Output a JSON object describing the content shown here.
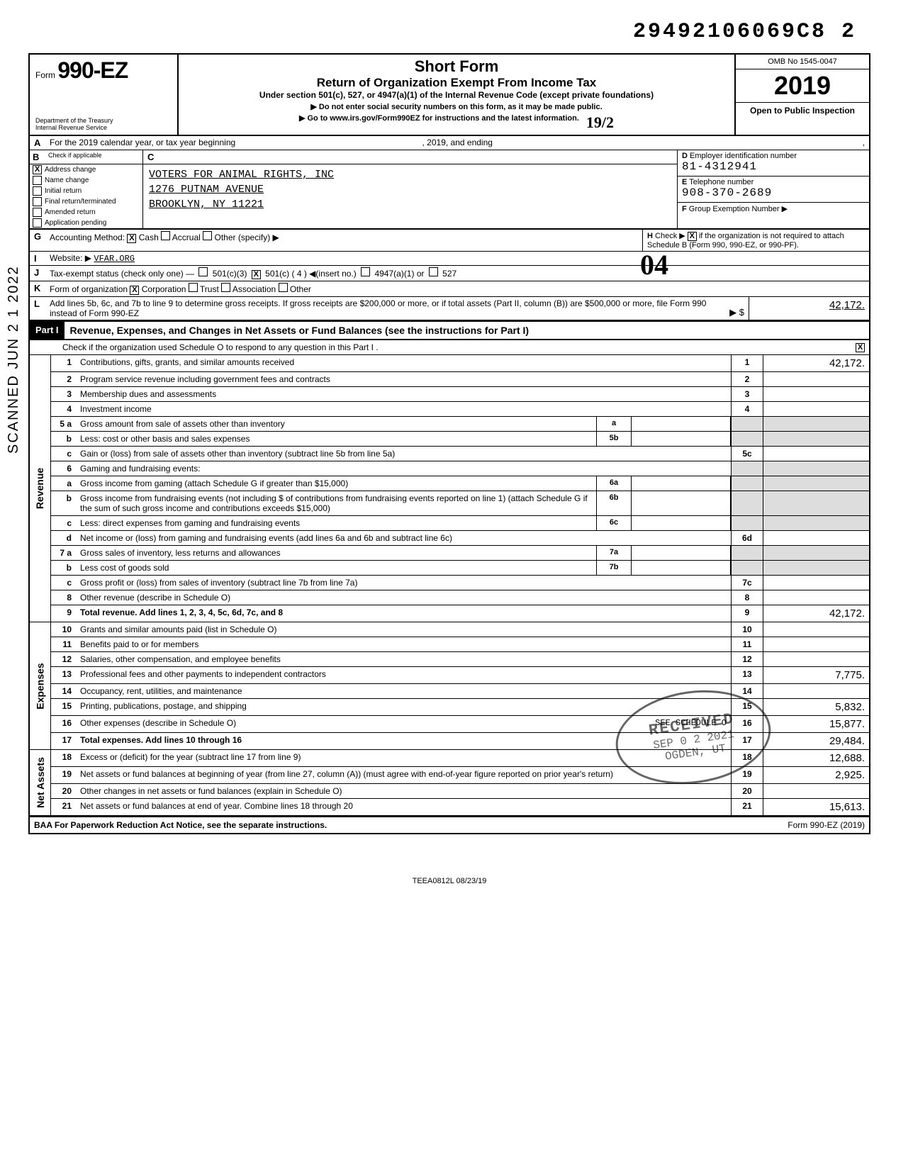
{
  "stamp": {
    "top_number": "29492106069C8  2",
    "handwritten_04": "04",
    "side_text": "SCANNED  JUN 2 1 2022"
  },
  "header": {
    "form_word": "Form",
    "form_num": "990-EZ",
    "title": "Short Form",
    "subtitle": "Return of Organization Exempt From Income Tax",
    "under": "Under section 501(c), 527, or 4947(a)(1) of the Internal Revenue Code (except private foundations)",
    "warn": "▶ Do not enter social security numbers on this form, as it may be made public.",
    "goto": "▶ Go to www.irs.gov/Form990EZ for instructions and the latest information.",
    "dept": "Department of the Treasury\nInternal Revenue Service",
    "omb": "OMB No 1545-0047",
    "year": "2019",
    "open": "Open to Public Inspection",
    "hand_right": "19/2"
  },
  "line_a": {
    "label": "A",
    "text": "For the 2019 calendar year, or tax year beginning",
    "mid": ", 2019, and ending",
    "end": ","
  },
  "col_b": {
    "label": "B",
    "note": "Check if applicable",
    "items": [
      {
        "checked": true,
        "label": "Address change"
      },
      {
        "checked": false,
        "label": "Name change"
      },
      {
        "checked": false,
        "label": "Initial return"
      },
      {
        "checked": false,
        "label": "Final return/terminated"
      },
      {
        "checked": false,
        "label": "Amended return"
      },
      {
        "checked": false,
        "label": "Application pending"
      }
    ]
  },
  "col_c": {
    "label": "C",
    "org_name": "VOTERS FOR ANIMAL RIGHTS, INC",
    "addr1": "1276 PUTNAM AVENUE",
    "addr2": "BROOKLYN, NY 11221"
  },
  "col_def": {
    "d_label": "D",
    "d_text": "Employer identification number",
    "d_value": "81-4312941",
    "e_label": "E",
    "e_text": "Telephone number",
    "e_value": "908-370-2689",
    "f_label": "F",
    "f_text": "Group Exemption Number  ▶"
  },
  "line_g": {
    "label": "G",
    "text": "Accounting Method:",
    "opts": [
      {
        "checked": true,
        "label": "Cash"
      },
      {
        "checked": false,
        "label": "Accrual"
      },
      {
        "checked": false,
        "label": "Other (specify) ▶"
      }
    ]
  },
  "line_h": {
    "label": "H",
    "text": "Check ▶",
    "checked": true,
    "tail": "if the organization is not required to attach Schedule B (Form 990, 990-EZ, or 990-PF)."
  },
  "line_i": {
    "label": "I",
    "text": "Website: ▶",
    "value": "VFAR.ORG"
  },
  "line_j": {
    "label": "J",
    "text": "Tax-exempt status (check only one) —",
    "opts": [
      {
        "checked": false,
        "label": "501(c)(3)"
      },
      {
        "checked": true,
        "label": "501(c) ( 4 ) ◀(insert no.)"
      },
      {
        "checked": false,
        "label": "4947(a)(1) or"
      },
      {
        "checked": false,
        "label": "527"
      }
    ]
  },
  "line_k": {
    "label": "K",
    "text": "Form of organization",
    "opts": [
      {
        "checked": true,
        "label": "Corporation"
      },
      {
        "checked": false,
        "label": "Trust"
      },
      {
        "checked": false,
        "label": "Association"
      },
      {
        "checked": false,
        "label": "Other"
      }
    ]
  },
  "line_l": {
    "label": "L",
    "text": "Add lines 5b, 6c, and 7b to line 9 to determine gross receipts. If gross receipts are $200,000 or more, or if total assets (Part II, column (B)) are $500,000 or more, file Form 990 instead of Form 990-EZ",
    "tail": "▶ $",
    "amount": "42,172."
  },
  "part1": {
    "tag": "Part I",
    "title": "Revenue, Expenses, and Changes in Net Assets or Fund Balances (see the instructions for Part I)",
    "checktext": "Check if the organization used Schedule O to respond to any question in this Part I .",
    "checked": true
  },
  "revenue_label": "Revenue",
  "expenses_label": "Expenses",
  "netassets_label": "Net Assets",
  "lines": {
    "l1": {
      "n": "1",
      "t": "Contributions, gifts, grants, and similar amounts received",
      "box": "1",
      "amt": "42,172."
    },
    "l2": {
      "n": "2",
      "t": "Program service revenue including government fees and contracts",
      "box": "2",
      "amt": ""
    },
    "l3": {
      "n": "3",
      "t": "Membership dues and assessments",
      "box": "3",
      "amt": ""
    },
    "l4": {
      "n": "4",
      "t": "Investment income",
      "box": "4",
      "amt": ""
    },
    "l5a": {
      "n": "5 a",
      "t": "Gross amount from sale of assets other than inventory",
      "mb": "a",
      "mv": ""
    },
    "l5b": {
      "n": "b",
      "t": "Less: cost or other basis and sales expenses",
      "mb": "5b",
      "mv": ""
    },
    "l5c": {
      "n": "c",
      "t": "Gain or (loss) from sale of assets other than inventory (subtract line 5b from line 5a)",
      "box": "5c",
      "amt": ""
    },
    "l6": {
      "n": "6",
      "t": "Gaming and fundraising events:"
    },
    "l6a": {
      "n": "a",
      "t": "Gross income from gaming (attach Schedule G if greater than $15,000)",
      "mb": "6a",
      "mv": ""
    },
    "l6b": {
      "n": "b",
      "t": "Gross income from fundraising events (not including $                      of contributions from fundraising events reported on line 1) (attach Schedule G if the sum of such gross income and contributions exceeds $15,000)",
      "mb": "6b",
      "mv": ""
    },
    "l6c": {
      "n": "c",
      "t": "Less: direct expenses from gaming and fundraising events",
      "mb": "6c",
      "mv": ""
    },
    "l6d": {
      "n": "d",
      "t": "Net income or (loss) from gaming and fundraising events (add lines 6a and 6b and subtract line 6c)",
      "box": "6d",
      "amt": ""
    },
    "l7a": {
      "n": "7 a",
      "t": "Gross sales of inventory, less returns and allowances",
      "mb": "7a",
      "mv": ""
    },
    "l7b": {
      "n": "b",
      "t": "Less cost of goods sold",
      "mb": "7b",
      "mv": ""
    },
    "l7c": {
      "n": "c",
      "t": "Gross profit or (loss) from sales of inventory (subtract line 7b from line 7a)",
      "box": "7c",
      "amt": ""
    },
    "l8": {
      "n": "8",
      "t": "Other revenue (describe in Schedule O)",
      "box": "8",
      "amt": ""
    },
    "l9": {
      "n": "9",
      "t": "Total revenue. Add lines 1, 2, 3, 4, 5c, 6d, 7c, and 8",
      "box": "9",
      "amt": "42,172.",
      "bold": true
    },
    "l10": {
      "n": "10",
      "t": "Grants and similar amounts paid (list in Schedule O)",
      "box": "10",
      "amt": ""
    },
    "l11": {
      "n": "11",
      "t": "Benefits paid to or for members",
      "box": "11",
      "amt": ""
    },
    "l12": {
      "n": "12",
      "t": "Salaries, other compensation, and employee benefits",
      "box": "12",
      "amt": ""
    },
    "l13": {
      "n": "13",
      "t": "Professional fees and other payments to independent contractors",
      "box": "13",
      "amt": "7,775."
    },
    "l14": {
      "n": "14",
      "t": "Occupancy, rent, utilities, and maintenance",
      "box": "14",
      "amt": ""
    },
    "l15": {
      "n": "15",
      "t": "Printing, publications, postage, and shipping",
      "box": "15",
      "amt": "5,832."
    },
    "l16": {
      "n": "16",
      "t": "Other expenses (describe in Schedule O)",
      "extra": "SEE SCHEDULE O",
      "box": "16",
      "amt": "15,877."
    },
    "l17": {
      "n": "17",
      "t": "Total expenses. Add lines 10 through 16",
      "box": "17",
      "amt": "29,484.",
      "bold": true
    },
    "l18": {
      "n": "18",
      "t": "Excess or (deficit) for the year (subtract line 17 from line 9)",
      "box": "18",
      "amt": "12,688."
    },
    "l19": {
      "n": "19",
      "t": "Net assets or fund balances at beginning of year (from line 27, column (A)) (must agree with end-of-year figure reported on prior year's return)",
      "box": "19",
      "amt": "2,925."
    },
    "l20": {
      "n": "20",
      "t": "Other changes in net assets or fund balances (explain in Schedule O)",
      "box": "20",
      "amt": ""
    },
    "l21": {
      "n": "21",
      "t": "Net assets or fund balances at end of year. Combine lines 18 through 20",
      "box": "21",
      "amt": "15,613."
    }
  },
  "received": {
    "r1": "RECEIVED",
    "r2": "SEP 0 2 2021",
    "r3": "OGDEN, UT"
  },
  "footer": {
    "left": "BAA  For Paperwork Reduction Act Notice, see the separate instructions.",
    "right": "Form 990-EZ (2019)"
  },
  "bottom_id": "TEEA0812L   08/23/19"
}
